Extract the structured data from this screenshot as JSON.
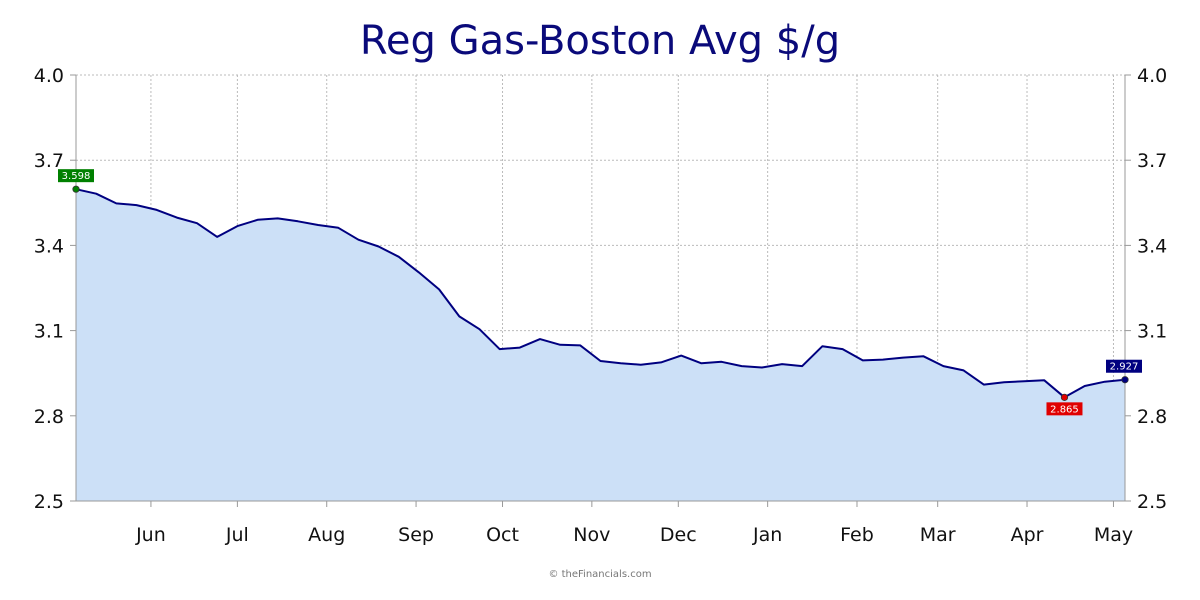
{
  "chart_data": {
    "type": "area",
    "title": "Reg Gas-Boston Avg $/g",
    "xlabel": "",
    "ylabel": "",
    "ylim": [
      2.5,
      4.0
    ],
    "yticks": [
      "2.5",
      "2.8",
      "3.1",
      "3.4",
      "3.7",
      "4.0"
    ],
    "xlim": [
      "2024-05-06",
      "2025-05-05"
    ],
    "xticks": [
      {
        "label": "Jun",
        "date": "2024-06-01"
      },
      {
        "label": "Jul",
        "date": "2024-07-01"
      },
      {
        "label": "Aug",
        "date": "2024-08-01"
      },
      {
        "label": "Sep",
        "date": "2024-09-01"
      },
      {
        "label": "Oct",
        "date": "2024-10-01"
      },
      {
        "label": "Nov",
        "date": "2024-11-01"
      },
      {
        "label": "Dec",
        "date": "2024-12-01"
      },
      {
        "label": "Jan",
        "date": "2025-01-01"
      },
      {
        "label": "Feb",
        "date": "2025-02-01"
      },
      {
        "label": "Mar",
        "date": "2025-03-01"
      },
      {
        "label": "Apr",
        "date": "2025-04-01"
      },
      {
        "label": "May",
        "date": "2025-05-01"
      }
    ],
    "grid": true,
    "dual_y_axis": true,
    "colors": {
      "line": "#000080",
      "fill": "#cce0f7",
      "grid": "#bbbbbb",
      "title": "#0a0a7a",
      "high_marker": "#008000",
      "low_marker": "#e00000",
      "last_marker": "#000080"
    },
    "series": [
      {
        "x": [
          "2024-05-06",
          "2024-05-13",
          "2024-05-20",
          "2024-05-27",
          "2024-06-03",
          "2024-06-10",
          "2024-06-17",
          "2024-06-24",
          "2024-07-01",
          "2024-07-08",
          "2024-07-15",
          "2024-07-22",
          "2024-07-29",
          "2024-08-05",
          "2024-08-12",
          "2024-08-19",
          "2024-08-26",
          "2024-09-02",
          "2024-09-09",
          "2024-09-16",
          "2024-09-23",
          "2024-09-30",
          "2024-10-07",
          "2024-10-14",
          "2024-10-21",
          "2024-10-28",
          "2024-11-04",
          "2024-11-11",
          "2024-11-18",
          "2024-11-25",
          "2024-12-02",
          "2024-12-09",
          "2024-12-16",
          "2024-12-23",
          "2024-12-30",
          "2025-01-06",
          "2025-01-13",
          "2025-01-20",
          "2025-01-27",
          "2025-02-03",
          "2025-02-10",
          "2025-02-17",
          "2025-02-24",
          "2025-03-03",
          "2025-03-10",
          "2025-03-17",
          "2025-03-24",
          "2025-03-31",
          "2025-04-07",
          "2025-04-14",
          "2025-04-21",
          "2025-04-28",
          "2025-05-05"
        ],
        "values": [
          3.598,
          3.582,
          3.548,
          3.542,
          3.525,
          3.498,
          3.478,
          3.43,
          3.468,
          3.49,
          3.495,
          3.485,
          3.472,
          3.462,
          3.42,
          3.396,
          3.36,
          3.305,
          3.245,
          3.15,
          3.105,
          3.035,
          3.04,
          3.07,
          3.05,
          3.048,
          2.993,
          2.985,
          2.98,
          2.988,
          3.012,
          2.985,
          2.99,
          2.975,
          2.97,
          2.982,
          2.975,
          3.045,
          3.035,
          2.995,
          2.998,
          3.005,
          3.01,
          2.975,
          2.96,
          2.91,
          2.918,
          2.922,
          2.925,
          2.865,
          2.905,
          2.92,
          2.927
        ]
      }
    ],
    "annotations": [
      {
        "label": "3.598",
        "date": "2024-05-06",
        "value": 3.598,
        "kind": "high"
      },
      {
        "label": "2.865",
        "date": "2025-04-14",
        "value": 2.865,
        "kind": "low"
      },
      {
        "label": "2.927",
        "date": "2025-05-05",
        "value": 2.927,
        "kind": "last"
      }
    ]
  },
  "credit": "© theFinancials.com"
}
